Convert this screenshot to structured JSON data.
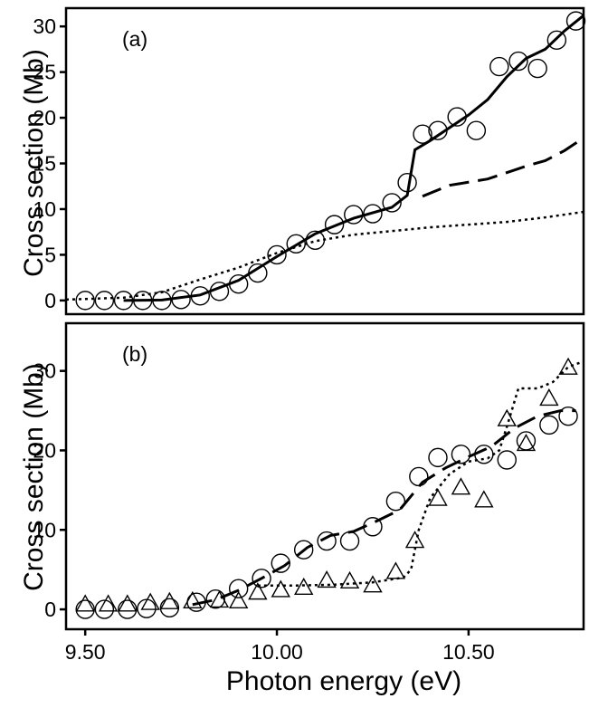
{
  "chart_data": [
    {
      "type": "scatter",
      "panel_label": "(a)",
      "ylabel": "Cross section (Mb)",
      "xlim": [
        9.45,
        10.8
      ],
      "ylim": [
        -1.5,
        32
      ],
      "y_ticks": [
        0,
        5,
        10,
        15,
        20,
        25,
        30
      ],
      "y_tick_labels": [
        "0",
        "5",
        "10",
        "15",
        "20",
        "25",
        "30"
      ],
      "series": [
        {
          "style": "circles",
          "points": [
            [
              9.5,
              0.0
            ],
            [
              9.55,
              0.0
            ],
            [
              9.6,
              0.0
            ],
            [
              9.65,
              0.0
            ],
            [
              9.7,
              0.0
            ],
            [
              9.75,
              0.1
            ],
            [
              9.8,
              0.5
            ],
            [
              9.85,
              1.0
            ],
            [
              9.9,
              1.8
            ],
            [
              9.95,
              3.0
            ],
            [
              10.0,
              5.0
            ],
            [
              10.05,
              6.2
            ],
            [
              10.1,
              6.6
            ],
            [
              10.15,
              8.3
            ],
            [
              10.2,
              9.4
            ],
            [
              10.25,
              9.5
            ],
            [
              10.3,
              10.7
            ],
            [
              10.34,
              12.9
            ],
            [
              10.38,
              18.2
            ],
            [
              10.42,
              18.6
            ],
            [
              10.47,
              20.1
            ],
            [
              10.52,
              18.6
            ],
            [
              10.58,
              25.6
            ],
            [
              10.63,
              26.2
            ],
            [
              10.68,
              25.4
            ],
            [
              10.73,
              28.5
            ],
            [
              10.78,
              30.6
            ]
          ]
        },
        {
          "style": "solid",
          "points": [
            [
              9.6,
              0.0
            ],
            [
              9.7,
              0.05
            ],
            [
              9.8,
              0.6
            ],
            [
              9.9,
              2.2
            ],
            [
              10.0,
              4.8
            ],
            [
              10.1,
              7.3
            ],
            [
              10.2,
              9.0
            ],
            [
              10.3,
              10.2
            ],
            [
              10.34,
              11.5
            ],
            [
              10.36,
              16.5
            ],
            [
              10.4,
              17.5
            ],
            [
              10.5,
              20.3
            ],
            [
              10.55,
              22.0
            ],
            [
              10.6,
              24.5
            ],
            [
              10.65,
              26.5
            ],
            [
              10.7,
              27.5
            ],
            [
              10.75,
              29.5
            ],
            [
              10.8,
              31.2
            ]
          ]
        },
        {
          "style": "dashed",
          "points": [
            [
              10.38,
              11.4
            ],
            [
              10.45,
              12.6
            ],
            [
              10.55,
              13.3
            ],
            [
              10.65,
              14.7
            ],
            [
              10.7,
              15.3
            ],
            [
              10.75,
              16.4
            ],
            [
              10.8,
              17.8
            ]
          ]
        },
        {
          "style": "dotted",
          "points": [
            [
              9.45,
              0.1
            ],
            [
              9.6,
              0.3
            ],
            [
              9.7,
              0.9
            ],
            [
              9.8,
              2.3
            ],
            [
              9.9,
              3.6
            ],
            [
              10.0,
              5.2
            ],
            [
              10.1,
              6.5
            ],
            [
              10.2,
              7.2
            ],
            [
              10.3,
              7.6
            ],
            [
              10.4,
              8.0
            ],
            [
              10.5,
              8.3
            ],
            [
              10.6,
              8.6
            ],
            [
              10.7,
              9.1
            ],
            [
              10.8,
              9.7
            ]
          ]
        }
      ]
    },
    {
      "type": "scatter",
      "panel_label": "(b)",
      "xlabel": "Photon energy (eV)",
      "ylabel": "Cross section (Mb)",
      "xlim": [
        9.45,
        10.8
      ],
      "ylim": [
        -2.5,
        36
      ],
      "x_ticks": [
        9.5,
        10.0,
        10.5
      ],
      "x_tick_labels": [
        "9.50",
        "10.00",
        "10.50"
      ],
      "y_ticks": [
        0,
        10,
        20,
        30
      ],
      "y_tick_labels": [
        "0",
        "10",
        "20",
        "30"
      ],
      "series": [
        {
          "style": "circles",
          "points": [
            [
              9.5,
              0.0
            ],
            [
              9.55,
              0.0
            ],
            [
              9.61,
              0.0
            ],
            [
              9.66,
              0.1
            ],
            [
              9.72,
              0.2
            ],
            [
              9.79,
              0.9
            ],
            [
              9.84,
              1.3
            ],
            [
              9.9,
              2.6
            ],
            [
              9.96,
              3.9
            ],
            [
              10.01,
              5.8
            ],
            [
              10.07,
              7.5
            ],
            [
              10.13,
              8.6
            ],
            [
              10.19,
              8.6
            ],
            [
              10.25,
              10.4
            ],
            [
              10.31,
              13.6
            ],
            [
              10.37,
              16.7
            ],
            [
              10.42,
              19.1
            ],
            [
              10.48,
              19.5
            ],
            [
              10.54,
              19.5
            ],
            [
              10.6,
              18.8
            ],
            [
              10.65,
              21.2
            ],
            [
              10.71,
              23.2
            ],
            [
              10.76,
              24.3
            ]
          ]
        },
        {
          "style": "triangles",
          "points": [
            [
              9.5,
              0.6
            ],
            [
              9.56,
              0.6
            ],
            [
              9.61,
              0.6
            ],
            [
              9.67,
              0.8
            ],
            [
              9.72,
              0.9
            ],
            [
              9.78,
              1.0
            ],
            [
              9.85,
              1.1
            ],
            [
              9.9,
              1.0
            ],
            [
              9.95,
              2.1
            ],
            [
              10.01,
              2.4
            ],
            [
              10.07,
              2.7
            ],
            [
              10.13,
              3.6
            ],
            [
              10.19,
              3.5
            ],
            [
              10.25,
              3.0
            ],
            [
              10.31,
              4.7
            ],
            [
              10.36,
              8.6
            ],
            [
              10.42,
              13.9
            ],
            [
              10.48,
              15.3
            ],
            [
              10.54,
              13.7
            ],
            [
              10.6,
              23.9
            ],
            [
              10.65,
              20.8
            ],
            [
              10.71,
              26.5
            ],
            [
              10.76,
              30.4
            ]
          ]
        },
        {
          "style": "dashed",
          "points": [
            [
              9.78,
              0.6
            ],
            [
              9.84,
              1.2
            ],
            [
              9.9,
              2.4
            ],
            [
              9.96,
              3.9
            ],
            [
              10.02,
              5.5
            ],
            [
              10.08,
              7.8
            ],
            [
              10.14,
              9.3
            ],
            [
              10.2,
              9.8
            ],
            [
              10.26,
              11.1
            ],
            [
              10.32,
              12.5
            ],
            [
              10.38,
              16.0
            ],
            [
              10.44,
              17.8
            ],
            [
              10.5,
              19.2
            ],
            [
              10.56,
              20.5
            ],
            [
              10.62,
              22.8
            ],
            [
              10.68,
              24.3
            ],
            [
              10.74,
              25.0
            ],
            [
              10.78,
              25.0
            ]
          ]
        },
        {
          "style": "dotted",
          "points": [
            [
              9.95,
              3.0
            ],
            [
              10.05,
              3.0
            ],
            [
              10.15,
              3.1
            ],
            [
              10.25,
              3.4
            ],
            [
              10.33,
              4.0
            ],
            [
              10.35,
              5.0
            ],
            [
              10.37,
              10.0
            ],
            [
              10.4,
              14.0
            ],
            [
              10.45,
              17.0
            ],
            [
              10.5,
              18.6
            ],
            [
              10.55,
              19.0
            ],
            [
              10.58,
              20.0
            ],
            [
              10.6,
              23.0
            ],
            [
              10.63,
              27.8
            ],
            [
              10.68,
              27.8
            ],
            [
              10.72,
              28.6
            ],
            [
              10.76,
              30.5
            ],
            [
              10.8,
              31.2
            ]
          ]
        }
      ]
    }
  ]
}
